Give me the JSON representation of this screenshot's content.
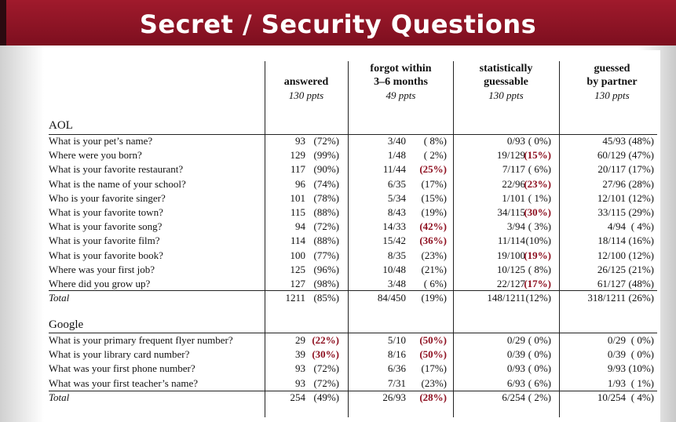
{
  "title": "Secret / Security Questions",
  "columns": [
    {
      "label1": "",
      "label2": "answered",
      "sub": "130 ppts"
    },
    {
      "label1": "forgot within",
      "label2": "3–6 months",
      "sub": "49 ppts"
    },
    {
      "label1": "statistically",
      "label2": "guessable",
      "sub": "130 ppts"
    },
    {
      "label1": "guessed",
      "label2": "by partner",
      "sub": "130 ppts"
    }
  ],
  "aol": {
    "heading": "AOL",
    "rows": [
      {
        "q": "What is your pet’s name?",
        "a": "93",
        "ap": "(72%)",
        "f": "3/40",
        "fp": "( 8%)",
        "s": "0/93",
        "sp": "( 0%)",
        "g": "45/93",
        "gp": "(48%)"
      },
      {
        "q": "Where were you born?",
        "a": "129",
        "ap": "(99%)",
        "f": "1/48",
        "fp": "( 2%)",
        "s": "19/129",
        "sp": "(15%)",
        "g": "60/129",
        "gp": "(47%)"
      },
      {
        "q": "What is your favorite restaurant?",
        "a": "117",
        "ap": "(90%)",
        "f": "11/44",
        "fp": "(25%)",
        "s": "7/117",
        "sp": "( 6%)",
        "g": "20/117",
        "gp": "(17%)"
      },
      {
        "q": "What is the name of your school?",
        "a": "96",
        "ap": "(74%)",
        "f": "6/35",
        "fp": "(17%)",
        "s": "22/96",
        "sp": "(23%)",
        "g": "27/96",
        "gp": "(28%)"
      },
      {
        "q": "Who is your favorite singer?",
        "a": "101",
        "ap": "(78%)",
        "f": "5/34",
        "fp": "(15%)",
        "s": "1/101",
        "sp": "( 1%)",
        "g": "12/101",
        "gp": "(12%)"
      },
      {
        "q": "What is your favorite town?",
        "a": "115",
        "ap": "(88%)",
        "f": "8/43",
        "fp": "(19%)",
        "s": "34/115",
        "sp": "(30%)",
        "g": "33/115",
        "gp": "(29%)"
      },
      {
        "q": "What is your favorite song?",
        "a": "94",
        "ap": "(72%)",
        "f": "14/33",
        "fp": "(42%)",
        "s": "3/94",
        "sp": "( 3%)",
        "g": "4/94",
        "gp": "( 4%)"
      },
      {
        "q": "What is your favorite film?",
        "a": "114",
        "ap": "(88%)",
        "f": "15/42",
        "fp": "(36%)",
        "s": "11/114",
        "sp": "(10%)",
        "g": "18/114",
        "gp": "(16%)"
      },
      {
        "q": "What is your favorite book?",
        "a": "100",
        "ap": "(77%)",
        "f": "8/35",
        "fp": "(23%)",
        "s": "19/100",
        "sp": "(19%)",
        "g": "12/100",
        "gp": "(12%)"
      },
      {
        "q": "Where was your first job?",
        "a": "125",
        "ap": "(96%)",
        "f": "10/48",
        "fp": "(21%)",
        "s": "10/125",
        "sp": "( 8%)",
        "g": "26/125",
        "gp": "(21%)"
      },
      {
        "q": "Where did you grow up?",
        "a": "127",
        "ap": "(98%)",
        "f": "3/48",
        "fp": "( 6%)",
        "s": "22/127",
        "sp": "(17%)",
        "g": "61/127",
        "gp": "(48%)"
      }
    ],
    "total": {
      "q": "Total",
      "a": "1211",
      "ap": "(85%)",
      "f": "84/450",
      "fp": "(19%)",
      "s": "148/1211",
      "sp": "(12%)",
      "g": "318/1211",
      "gp": "(26%)"
    }
  },
  "google": {
    "heading": "Google",
    "rows": [
      {
        "q": "What is your primary frequent flyer number?",
        "a": "29",
        "ap": "(22%)",
        "f": "5/10",
        "fp": "(50%)",
        "s": "0/29",
        "sp": "( 0%)",
        "g": "0/29",
        "gp": "( 0%)"
      },
      {
        "q": "What is your library card number?",
        "a": "39",
        "ap": "(30%)",
        "f": "8/16",
        "fp": "(50%)",
        "s": "0/39",
        "sp": "( 0%)",
        "g": "0/39",
        "gp": "( 0%)"
      },
      {
        "q": "What was your first phone number?",
        "a": "93",
        "ap": "(72%)",
        "f": "6/36",
        "fp": "(17%)",
        "s": "0/93",
        "sp": "( 0%)",
        "g": "9/93",
        "gp": "(10%)"
      },
      {
        "q": "What was your first teacher’s name?",
        "a": "93",
        "ap": "(72%)",
        "f": "7/31",
        "fp": "(23%)",
        "s": "6/93",
        "sp": "( 6%)",
        "g": "1/93",
        "gp": "( 1%)"
      }
    ],
    "total": {
      "q": "Total",
      "a": "254",
      "ap": "(49%)",
      "f": "26/93",
      "fp": "(28%)",
      "s": "6/254",
      "sp": "( 2%)",
      "g": "10/254",
      "gp": "( 4%)"
    }
  }
}
